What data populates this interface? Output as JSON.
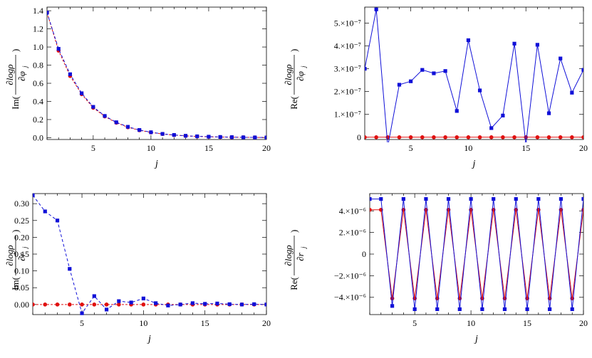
{
  "chart_data": [
    {
      "type": "line",
      "ylabel": "Im(∂logρ/∂φj)",
      "ylabel_parts": {
        "fn": "Im(",
        "num": "∂logρ",
        "den": "∂φ",
        "sub": "j",
        "close": ")"
      },
      "xlabel": "j",
      "xlim": [
        1,
        20
      ],
      "ylim": [
        -0.02,
        1.44
      ],
      "xticks": [
        5,
        10,
        15,
        20
      ],
      "xtick_labels": [
        "5",
        "10",
        "15",
        "20"
      ],
      "yticks": [
        0,
        0.2,
        0.4,
        0.6,
        0.8,
        1.0,
        1.2,
        1.4
      ],
      "ytick_labels": [
        "0.0",
        "0.2",
        "0.4",
        "0.6",
        "0.8",
        "1.0",
        "1.2",
        "1.4"
      ],
      "series": [
        {
          "color": "#1010d8",
          "marker": "square",
          "dash": "4,3",
          "x": [
            1,
            2,
            3,
            4,
            5,
            6,
            7,
            8,
            9,
            10,
            11,
            12,
            13,
            14,
            15,
            16,
            17,
            18,
            19,
            20
          ],
          "y": [
            1.38,
            0.98,
            0.7,
            0.49,
            0.34,
            0.24,
            0.17,
            0.12,
            0.085,
            0.06,
            0.042,
            0.03,
            0.021,
            0.015,
            0.011,
            0.008,
            0.006,
            0.004,
            0.003,
            0.002
          ]
        },
        {
          "color": "#e01010",
          "marker": "circle",
          "dash": "3,2",
          "x": [
            1,
            2,
            3,
            4,
            5,
            6,
            7,
            8,
            9,
            10,
            11,
            12,
            13,
            14,
            15,
            16,
            17,
            18,
            19,
            20
          ],
          "y": [
            1.38,
            0.96,
            0.68,
            0.48,
            0.33,
            0.235,
            0.165,
            0.115,
            0.082,
            0.058,
            0.041,
            0.029,
            0.02,
            0.014,
            0.01,
            0.007,
            0.005,
            0.004,
            0.003,
            0.002
          ]
        }
      ]
    },
    {
      "type": "line",
      "ylabel": "Re(∂logρ/∂φj)",
      "ylabel_parts": {
        "fn": "Re(",
        "num": "∂logρ",
        "den": "∂φ",
        "sub": "j",
        "close": ")"
      },
      "xlabel": "j",
      "xlim": [
        1,
        20
      ],
      "ylim": [
        -1e-08,
        5.7e-07
      ],
      "xticks": [
        5,
        10,
        15,
        20
      ],
      "xtick_labels": [
        "5",
        "10",
        "15",
        "20"
      ],
      "yticks": [
        0,
        1e-07,
        2e-07,
        3e-07,
        4e-07,
        5e-07
      ],
      "ytick_labels": [
        "0",
        "1.×10⁻⁷",
        "2.×10⁻⁷",
        "3.×10⁻⁷",
        "4.×10⁻⁷",
        "5.×10⁻⁷"
      ],
      "series": [
        {
          "color": "#1010d8",
          "marker": "square",
          "dash": "",
          "x": [
            1,
            2,
            3,
            4,
            5,
            6,
            7,
            8,
            9,
            10,
            11,
            12,
            13,
            14,
            15,
            16,
            17,
            18,
            19,
            20
          ],
          "y": [
            3e-07,
            5.6e-07,
            -4e-08,
            2.3e-07,
            2.45e-07,
            2.95e-07,
            2.8e-07,
            2.9e-07,
            1.15e-07,
            4.25e-07,
            2.05e-07,
            4e-08,
            9.5e-08,
            4.1e-07,
            -3e-08,
            4.05e-07,
            1.05e-07,
            3.45e-07,
            1.95e-07,
            2.95e-07
          ]
        },
        {
          "color": "#e01010",
          "marker": "circle",
          "dash": "",
          "x": [
            1,
            2,
            3,
            4,
            5,
            6,
            7,
            8,
            9,
            10,
            11,
            12,
            13,
            14,
            15,
            16,
            17,
            18,
            19,
            20
          ],
          "y": [
            0,
            0,
            0,
            0,
            0,
            0,
            0,
            0,
            0,
            0,
            0,
            0,
            0,
            0,
            0,
            0,
            0,
            0,
            0,
            0
          ]
        }
      ]
    },
    {
      "type": "line",
      "ylabel": "Im(∂logρ/∂rj)",
      "ylabel_parts": {
        "fn": "Im(",
        "num": "∂logρ",
        "den": "∂r",
        "sub": "j",
        "close": ")"
      },
      "xlabel": "j",
      "xlim": [
        1,
        20
      ],
      "ylim": [
        -0.03,
        0.33
      ],
      "xticks": [
        5,
        10,
        15,
        20
      ],
      "xtick_labels": [
        "5",
        "10",
        "15",
        "20"
      ],
      "yticks": [
        0,
        0.05,
        0.1,
        0.15,
        0.2,
        0.25,
        0.3
      ],
      "ytick_labels": [
        "0.00",
        "0.05",
        "0.10",
        "0.15",
        "0.20",
        "0.25",
        "0.30"
      ],
      "series": [
        {
          "color": "#1010d8",
          "marker": "square",
          "dash": "4,3",
          "x": [
            1,
            2,
            3,
            4,
            5,
            6,
            7,
            8,
            9,
            10,
            11,
            12,
            13,
            14,
            15,
            16,
            17,
            18,
            19,
            20
          ],
          "y": [
            0.325,
            0.277,
            0.25,
            0.106,
            -0.026,
            0.025,
            -0.015,
            0.01,
            0.006,
            0.018,
            0.004,
            -0.003,
            0.0,
            0.004,
            0.002,
            0.003,
            0.001,
            0.0,
            0.001,
            0.0
          ]
        },
        {
          "color": "#e01010",
          "marker": "circle",
          "dash": "3,2",
          "x": [
            1,
            2,
            3,
            4,
            5,
            6,
            7,
            8,
            9,
            10,
            11,
            12,
            13,
            14,
            15,
            16,
            17,
            18,
            19,
            20
          ],
          "y": [
            0,
            0,
            0,
            0,
            0,
            0,
            0,
            0,
            0,
            0,
            0,
            0,
            0,
            0,
            0,
            0,
            0,
            0,
            0,
            0
          ]
        }
      ]
    },
    {
      "type": "line",
      "ylabel": "Re(∂logρ/∂rj)",
      "ylabel_parts": {
        "fn": "Re(",
        "num": "∂logρ",
        "den": "∂r",
        "sub": "j",
        "close": ")"
      },
      "xlabel": "j",
      "xlim": [
        1,
        20
      ],
      "ylim": [
        -5.6e-06,
        5.6e-06
      ],
      "xticks": [
        5,
        10,
        15,
        20
      ],
      "xtick_labels": [
        "5",
        "10",
        "15",
        "20"
      ],
      "yticks": [
        -4e-06,
        -2e-06,
        0,
        2e-06,
        4e-06
      ],
      "ytick_labels": [
        "−4.×10⁻⁶",
        "−2.×10⁻⁶",
        "0",
        "2.×10⁻⁶",
        "4.×10⁻⁶"
      ],
      "series": [
        {
          "color": "#1010d8",
          "marker": "square",
          "dash": "",
          "x": [
            1,
            2,
            3,
            4,
            5,
            6,
            7,
            8,
            9,
            10,
            11,
            12,
            13,
            14,
            15,
            16,
            17,
            18,
            19,
            20
          ],
          "y": [
            5.1e-06,
            5.1e-06,
            -4.8e-06,
            5.1e-06,
            -5.1e-06,
            5.1e-06,
            -5.1e-06,
            5.1e-06,
            -5.1e-06,
            5.1e-06,
            -5.1e-06,
            5.1e-06,
            -5.1e-06,
            5.1e-06,
            -5.1e-06,
            5.1e-06,
            -5.1e-06,
            5.1e-06,
            -5.1e-06,
            5.1e-06
          ]
        },
        {
          "color": "#e01010",
          "marker": "circle",
          "dash": "",
          "x": [
            1,
            2,
            3,
            4,
            5,
            6,
            7,
            8,
            9,
            10,
            11,
            12,
            13,
            14,
            15,
            16,
            17,
            18,
            19,
            20
          ],
          "y": [
            4.1e-06,
            4.1e-06,
            -4.1e-06,
            4.1e-06,
            -4.1e-06,
            4.1e-06,
            -4.1e-06,
            4.1e-06,
            -4.1e-06,
            4.1e-06,
            -4.1e-06,
            4.1e-06,
            -4.1e-06,
            4.1e-06,
            -4.1e-06,
            4.1e-06,
            -4.1e-06,
            4.1e-06,
            -4.1e-06,
            4.1e-06
          ]
        }
      ]
    }
  ]
}
